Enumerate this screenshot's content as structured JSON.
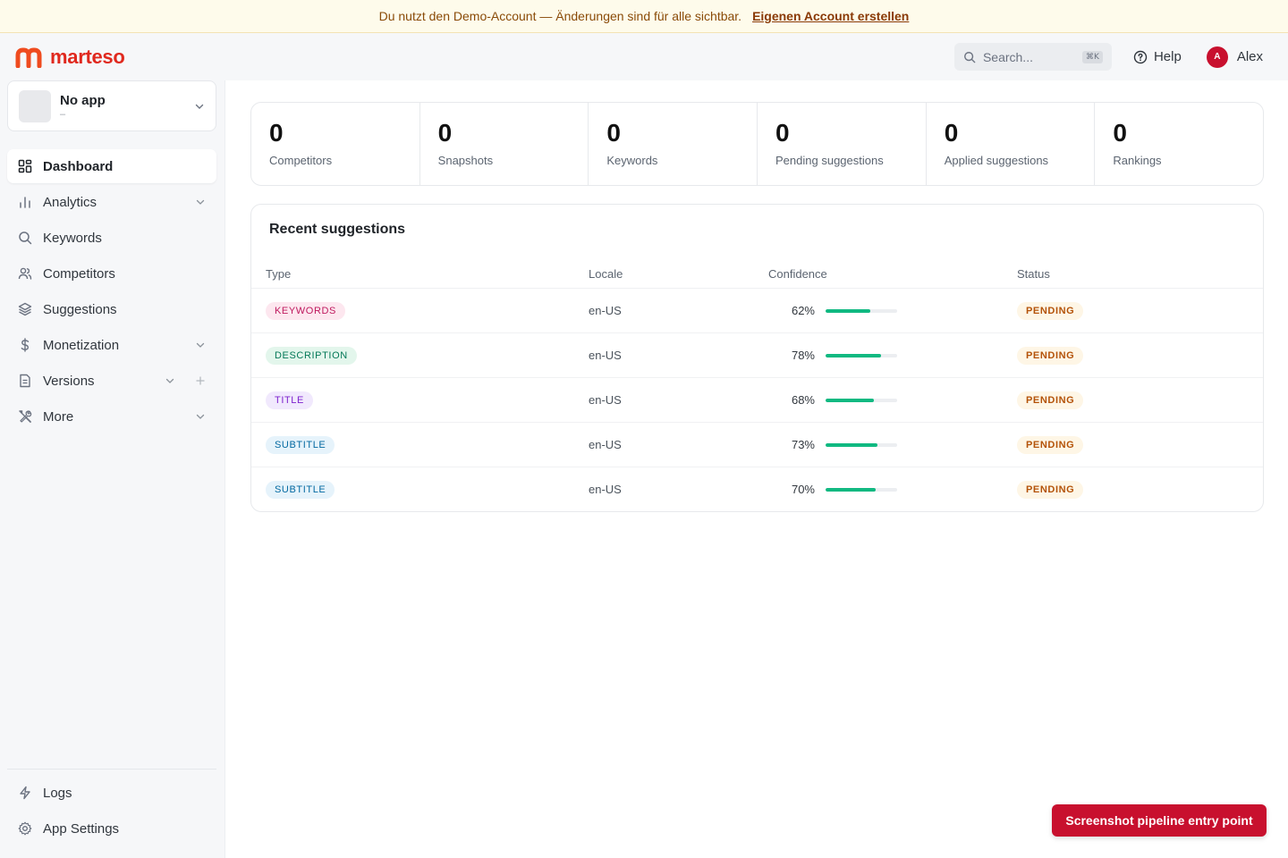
{
  "banner": {
    "text": "Du nutzt den Demo-Account — Änderungen sind für alle sichtbar.",
    "link_label": "Eigenen Account erstellen"
  },
  "header": {
    "brand": "marteso",
    "search_placeholder": "Search...",
    "search_shortcut": "⌘K",
    "help_label": "Help",
    "user_initial": "A",
    "user_name": "Alex"
  },
  "app_switcher": {
    "name": "No app",
    "sub": "–"
  },
  "sidebar": {
    "items": [
      {
        "label": "Dashboard",
        "icon": "dashboard-icon",
        "active": true
      },
      {
        "label": "Analytics",
        "icon": "analytics-icon",
        "chevron": true
      },
      {
        "label": "Keywords",
        "icon": "search-icon"
      },
      {
        "label": "Competitors",
        "icon": "users-icon"
      },
      {
        "label": "Suggestions",
        "icon": "layers-icon"
      },
      {
        "label": "Monetization",
        "icon": "dollar-icon",
        "chevron": true
      },
      {
        "label": "Versions",
        "icon": "document-icon",
        "chevron": true,
        "plus": true
      },
      {
        "label": "More",
        "icon": "tools-icon",
        "chevron": true
      }
    ],
    "bottom": [
      {
        "label": "Logs",
        "icon": "bolt-icon"
      },
      {
        "label": "App Settings",
        "icon": "gear-icon"
      }
    ]
  },
  "stats": [
    {
      "value": "0",
      "label": "Competitors"
    },
    {
      "value": "0",
      "label": "Snapshots"
    },
    {
      "value": "0",
      "label": "Keywords"
    },
    {
      "value": "0",
      "label": "Pending suggestions"
    },
    {
      "value": "0",
      "label": "Applied suggestions"
    },
    {
      "value": "0",
      "label": "Rankings"
    }
  ],
  "recent": {
    "title": "Recent suggestions",
    "columns": {
      "type": "Type",
      "locale": "Locale",
      "confidence": "Confidence",
      "status": "Status"
    },
    "rows": [
      {
        "type": "KEYWORDS",
        "type_bg": "#fde7ef",
        "type_color": "#be185d",
        "locale": "en-US",
        "confidence": 62,
        "confidence_label": "62%",
        "status": "PENDING"
      },
      {
        "type": "DESCRIPTION",
        "type_bg": "#e3f6ec",
        "type_color": "#047857",
        "locale": "en-US",
        "confidence": 78,
        "confidence_label": "78%",
        "status": "PENDING"
      },
      {
        "type": "TITLE",
        "type_bg": "#f1e9fd",
        "type_color": "#7e22ce",
        "locale": "en-US",
        "confidence": 68,
        "confidence_label": "68%",
        "status": "PENDING"
      },
      {
        "type": "SUBTITLE",
        "type_bg": "#e6f3fb",
        "type_color": "#0369a1",
        "locale": "en-US",
        "confidence": 73,
        "confidence_label": "73%",
        "status": "PENDING"
      },
      {
        "type": "SUBTITLE",
        "type_bg": "#e6f3fb",
        "type_color": "#0369a1",
        "locale": "en-US",
        "confidence": 70,
        "confidence_label": "70%",
        "status": "PENDING"
      }
    ]
  },
  "floating_button": "Screenshot pipeline entry point",
  "colors": {
    "brand": "#e0291e",
    "accent": "#c8102e",
    "bar": "#10b981",
    "pending_bg": "#fef6e6",
    "pending_text": "#b45309"
  }
}
